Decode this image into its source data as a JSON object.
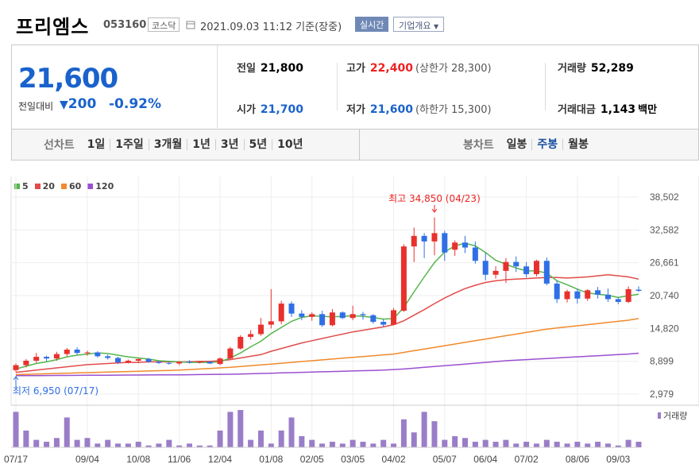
{
  "header": {
    "name": "프리엠스",
    "code": "053160",
    "market": "코스닥",
    "datetime": "2021.09.03 11:12  기준(장중)",
    "realtime_label": "실시간",
    "company_label": "기업개요"
  },
  "price": {
    "current": "21,600",
    "change_label": "전일대비",
    "change_amount": "200",
    "change_pct": "-0.92%"
  },
  "stats": {
    "prev_close_label": "전일",
    "prev_close": "21,800",
    "open_label": "시가",
    "open": "21,700",
    "high_label": "고가",
    "high": "22,400",
    "upper_limit": "(상한가 28,300)",
    "low_label": "저가",
    "low": "21,600",
    "lower_limit": "(하한가 15,300)",
    "volume_label": "거래량",
    "volume": "52,289",
    "amount_label": "거래대금",
    "amount": "1,143",
    "amount_unit": "백만"
  },
  "toolbar": {
    "line_label": "선차트",
    "line_periods": [
      "1일",
      "1주일",
      "3개월",
      "1년",
      "3년",
      "5년",
      "10년"
    ],
    "candle_label": "봉차트",
    "candle_periods": [
      "일봉",
      "주봉",
      "월봉"
    ],
    "candle_active": "주봉"
  },
  "colors": {
    "up": "#e8312d",
    "down": "#2f6fe6",
    "ma5": "#55b64d",
    "ma20": "#e24b4b",
    "ma60": "#f08a2c",
    "ma120": "#9a4fd1",
    "volume": "#9a7dc8"
  },
  "chart_data": {
    "type": "candlestick",
    "legend": [
      "5",
      "20",
      "60",
      "120"
    ],
    "y_ticks": [
      "38,502",
      "32,582",
      "26,661",
      "20,740",
      "14,820",
      "8,899",
      "2,979"
    ],
    "ylim": [
      2979,
      38502
    ],
    "x_ticks": [
      "07/17",
      "09/04",
      "10/08",
      "11/06",
      "12/04",
      "01/08",
      "02/05",
      "03/05",
      "04/02",
      "05/07",
      "06/04",
      "07/02",
      "08/06",
      "09/03"
    ],
    "x_tick_index": [
      0,
      7,
      12,
      16,
      20,
      25,
      29,
      33,
      37,
      42,
      46,
      50,
      55,
      59
    ],
    "annotations": {
      "high": "최고 34,850 (04/23)",
      "low": "최저 6,950 (07/17)"
    },
    "volume_label": "거래량",
    "candles": [
      [
        7300,
        8500,
        6950,
        8200
      ],
      [
        8200,
        9300,
        7800,
        9000
      ],
      [
        9000,
        10400,
        8600,
        9700
      ],
      [
        9700,
        9900,
        8900,
        9400
      ],
      [
        9400,
        10600,
        9000,
        10200
      ],
      [
        10200,
        11300,
        9800,
        11000
      ],
      [
        11000,
        11400,
        10100,
        10400
      ],
      [
        10400,
        10800,
        9900,
        10500
      ],
      [
        10500,
        10700,
        9600,
        9800
      ],
      [
        9800,
        10100,
        9200,
        9500
      ],
      [
        9500,
        9700,
        8400,
        8700
      ],
      [
        8700,
        9200,
        8500,
        9000
      ],
      [
        9000,
        9400,
        8700,
        9300
      ],
      [
        9300,
        9500,
        8600,
        8800
      ],
      [
        8800,
        9000,
        8400,
        8600
      ],
      [
        8600,
        8800,
        8300,
        8500
      ],
      [
        8500,
        8900,
        8200,
        8800
      ],
      [
        8800,
        9100,
        8500,
        8700
      ],
      [
        8700,
        8900,
        8500,
        8800
      ],
      [
        8800,
        8900,
        8400,
        8500
      ],
      [
        8400,
        9600,
        8200,
        9400
      ],
      [
        9400,
        11500,
        9300,
        11200
      ],
      [
        11200,
        13600,
        11000,
        13300
      ],
      [
        13300,
        14500,
        12800,
        13800
      ],
      [
        13800,
        16700,
        13500,
        15500
      ],
      [
        15500,
        21900,
        14800,
        16100
      ],
      [
        16100,
        19800,
        15600,
        19300
      ],
      [
        19300,
        19700,
        16900,
        17500
      ],
      [
        17500,
        18100,
        16300,
        16900
      ],
      [
        16900,
        17700,
        16200,
        17400
      ],
      [
        17400,
        18000,
        15100,
        15400
      ],
      [
        15400,
        18300,
        15200,
        17700
      ],
      [
        17700,
        17900,
        16500,
        16700
      ],
      [
        16700,
        18900,
        16300,
        17400
      ],
      [
        17400,
        17800,
        16400,
        17200
      ],
      [
        17200,
        17400,
        15700,
        16000
      ],
      [
        16000,
        16500,
        15100,
        15500
      ],
      [
        15500,
        18500,
        15400,
        18100
      ],
      [
        18000,
        30000,
        17800,
        29600
      ],
      [
        29600,
        33000,
        26800,
        31500
      ],
      [
        31500,
        32000,
        27500,
        30500
      ],
      [
        30500,
        34850,
        28000,
        32000
      ],
      [
        32000,
        32400,
        27000,
        28500
      ],
      [
        29000,
        30700,
        27900,
        30300
      ],
      [
        30300,
        31500,
        28400,
        29400
      ],
      [
        29400,
        30500,
        26500,
        27000
      ],
      [
        27000,
        28500,
        23500,
        24500
      ],
      [
        24500,
        26000,
        23800,
        25200
      ],
      [
        25200,
        27500,
        23000,
        26800
      ],
      [
        26800,
        27800,
        25000,
        26000
      ],
      [
        26000,
        26800,
        24000,
        24600
      ],
      [
        24600,
        27200,
        24200,
        27000
      ],
      [
        27000,
        27600,
        22600,
        22900
      ],
      [
        22900,
        23500,
        19400,
        20100
      ],
      [
        20100,
        21800,
        19500,
        21500
      ],
      [
        21500,
        22000,
        19300,
        20200
      ],
      [
        20200,
        21900,
        19800,
        21700
      ],
      [
        21700,
        22300,
        20200,
        20900
      ],
      [
        20900,
        22000,
        19600,
        20100
      ],
      [
        20100,
        20400,
        19200,
        19600
      ],
      [
        19600,
        22400,
        19400,
        21900
      ],
      [
        21800,
        22400,
        21400,
        21600
      ]
    ],
    "ma5": [
      7500,
      8000,
      8500,
      8800,
      9200,
      9700,
      10000,
      10200,
      10400,
      10300,
      10000,
      9700,
      9500,
      9300,
      9000,
      8900,
      8800,
      8700,
      8700,
      8700,
      8800,
      9500,
      10400,
      11500,
      12500,
      13900,
      15000,
      16100,
      16800,
      17100,
      17000,
      16900,
      17000,
      17100,
      17000,
      16800,
      16500,
      16600,
      18600,
      21400,
      24100,
      26700,
      28600,
      29700,
      30200,
      29700,
      28500,
      27100,
      26400,
      25700,
      25200,
      25200,
      24800,
      23400,
      22700,
      21900,
      21200,
      21000,
      20800,
      20400,
      20700,
      21000
    ],
    "ma20": [
      6900,
      7100,
      7300,
      7500,
      7700,
      7900,
      8100,
      8300,
      8400,
      8500,
      8600,
      8700,
      8700,
      8800,
      8800,
      8800,
      8800,
      8800,
      8900,
      8900,
      9000,
      9200,
      9500,
      9800,
      10100,
      10700,
      11200,
      11700,
      12200,
      12600,
      13000,
      13400,
      13800,
      14200,
      14500,
      14800,
      15100,
      15500,
      16200,
      17200,
      18200,
      19300,
      20300,
      21200,
      22000,
      22600,
      23100,
      23400,
      23600,
      23700,
      23800,
      23900,
      24000,
      24000,
      23900,
      24000,
      24100,
      24300,
      24500,
      24300,
      24100,
      23700
    ],
    "ma60": [
      6500,
      6550,
      6600,
      6650,
      6700,
      6750,
      6800,
      6850,
      6900,
      6950,
      7000,
      7050,
      7100,
      7150,
      7200,
      7250,
      7300,
      7400,
      7500,
      7600,
      7700,
      7800,
      7950,
      8100,
      8250,
      8400,
      8550,
      8700,
      8850,
      9000,
      9150,
      9300,
      9450,
      9600,
      9750,
      9900,
      10050,
      10200,
      10500,
      10800,
      11100,
      11400,
      11700,
      12000,
      12300,
      12600,
      12900,
      13200,
      13500,
      13800,
      14100,
      14400,
      14700,
      14900,
      15100,
      15300,
      15500,
      15700,
      15900,
      16100,
      16300,
      16600
    ],
    "ma120": [
      6300,
      6310,
      6320,
      6330,
      6340,
      6350,
      6360,
      6370,
      6380,
      6390,
      6400,
      6410,
      6420,
      6430,
      6440,
      6450,
      6460,
      6480,
      6500,
      6520,
      6540,
      6560,
      6600,
      6650,
      6700,
      6750,
      6800,
      6850,
      6900,
      6950,
      7000,
      7050,
      7100,
      7150,
      7200,
      7250,
      7300,
      7400,
      7500,
      7650,
      7800,
      7950,
      8100,
      8250,
      8400,
      8550,
      8700,
      8850,
      9000,
      9100,
      9200,
      9300,
      9400,
      9500,
      9600,
      9700,
      9800,
      9900,
      10000,
      10100,
      10200,
      10350
    ],
    "volume": [
      95,
      45,
      20,
      15,
      25,
      80,
      20,
      25,
      10,
      20,
      10,
      10,
      15,
      5,
      10,
      20,
      5,
      10,
      5,
      5,
      45,
      95,
      100,
      20,
      45,
      10,
      45,
      80,
      30,
      20,
      10,
      15,
      10,
      20,
      15,
      10,
      20,
      10,
      75,
      40,
      95,
      70,
      20,
      30,
      25,
      15,
      20,
      15,
      20,
      10,
      15,
      10,
      20,
      15,
      10,
      15,
      10,
      15,
      10,
      5,
      20,
      15
    ]
  }
}
